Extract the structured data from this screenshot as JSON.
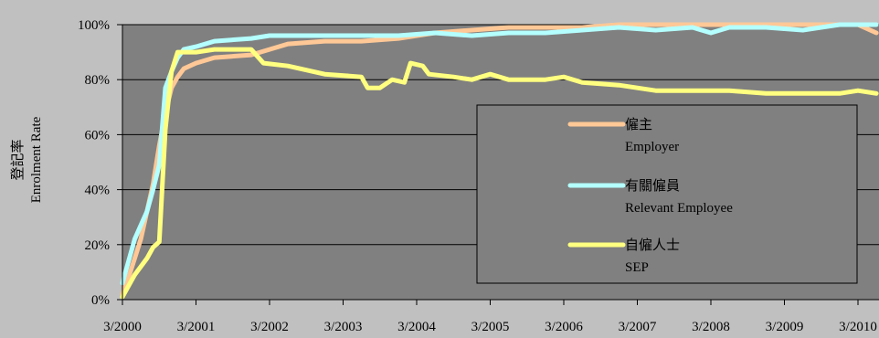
{
  "chart_data": {
    "type": "line",
    "ylabel_line1": "登記率",
    "ylabel_line2": "Enrolment Rate",
    "ylim": [
      0,
      100
    ],
    "y_ticks": [
      {
        "value": 0,
        "label": "0%"
      },
      {
        "value": 20,
        "label": "20%"
      },
      {
        "value": 40,
        "label": "40%"
      },
      {
        "value": 60,
        "label": "60%"
      },
      {
        "value": 80,
        "label": "80%"
      },
      {
        "value": 100,
        "label": "100%"
      }
    ],
    "x_ticks": [
      "3/2000",
      "3/2001",
      "3/2002",
      "3/2003",
      "3/2004",
      "3/2005",
      "3/2006",
      "3/2007",
      "3/2008",
      "3/2009",
      "3/2010"
    ],
    "grid": true,
    "legend_position": "right",
    "series": [
      {
        "name_zh": "僱主",
        "name_en": "Employer",
        "color": "#ffc896",
        "points": [
          {
            "x": "3/2000",
            "y": 2
          },
          {
            "x": "4/2000",
            "y": 8
          },
          {
            "x": "5/2000",
            "y": 15
          },
          {
            "x": "6/2000",
            "y": 22
          },
          {
            "x": "7/2000",
            "y": 32
          },
          {
            "x": "8/2000",
            "y": 42
          },
          {
            "x": "9/2000",
            "y": 56
          },
          {
            "x": "10/2000",
            "y": 68
          },
          {
            "x": "11/2000",
            "y": 77
          },
          {
            "x": "12/2000",
            "y": 81
          },
          {
            "x": "1/2001",
            "y": 84
          },
          {
            "x": "3/2001",
            "y": 86
          },
          {
            "x": "6/2001",
            "y": 88
          },
          {
            "x": "12/2001",
            "y": 89
          },
          {
            "x": "3/2002",
            "y": 91
          },
          {
            "x": "6/2002",
            "y": 93
          },
          {
            "x": "12/2002",
            "y": 94
          },
          {
            "x": "6/2003",
            "y": 94
          },
          {
            "x": "12/2003",
            "y": 95
          },
          {
            "x": "6/2004",
            "y": 97
          },
          {
            "x": "12/2004",
            "y": 98
          },
          {
            "x": "6/2005",
            "y": 99
          },
          {
            "x": "12/2005",
            "y": 99
          },
          {
            "x": "6/2006",
            "y": 99
          },
          {
            "x": "12/2006",
            "y": 100
          },
          {
            "x": "6/2007",
            "y": 100
          },
          {
            "x": "12/2007",
            "y": 100
          },
          {
            "x": "6/2008",
            "y": 100
          },
          {
            "x": "12/2008",
            "y": 100
          },
          {
            "x": "6/2009",
            "y": 100
          },
          {
            "x": "12/2009",
            "y": 100
          },
          {
            "x": "3/2010",
            "y": 100
          },
          {
            "x": "6/2010",
            "y": 97
          }
        ]
      },
      {
        "name_zh": "有關僱員",
        "name_en": "Relevant Employee",
        "color": "#b4ffff",
        "points": [
          {
            "x": "3/2000",
            "y": 6
          },
          {
            "x": "4/2000",
            "y": 14
          },
          {
            "x": "5/2000",
            "y": 22
          },
          {
            "x": "6/2000",
            "y": 27
          },
          {
            "x": "7/2000",
            "y": 32
          },
          {
            "x": "8/2000",
            "y": 40
          },
          {
            "x": "9/2000",
            "y": 49
          },
          {
            "x": "10/2000",
            "y": 77
          },
          {
            "x": "11/2000",
            "y": 83
          },
          {
            "x": "12/2000",
            "y": 88
          },
          {
            "x": "1/2001",
            "y": 91
          },
          {
            "x": "3/2001",
            "y": 92
          },
          {
            "x": "6/2001",
            "y": 94
          },
          {
            "x": "12/2001",
            "y": 95
          },
          {
            "x": "3/2002",
            "y": 96
          },
          {
            "x": "12/2002",
            "y": 96
          },
          {
            "x": "6/2003",
            "y": 96
          },
          {
            "x": "12/2003",
            "y": 96
          },
          {
            "x": "6/2004",
            "y": 97
          },
          {
            "x": "12/2004",
            "y": 96
          },
          {
            "x": "6/2005",
            "y": 97
          },
          {
            "x": "12/2005",
            "y": 97
          },
          {
            "x": "6/2006",
            "y": 98
          },
          {
            "x": "12/2006",
            "y": 99
          },
          {
            "x": "6/2007",
            "y": 98
          },
          {
            "x": "12/2007",
            "y": 99
          },
          {
            "x": "3/2008",
            "y": 97
          },
          {
            "x": "6/2008",
            "y": 99
          },
          {
            "x": "12/2008",
            "y": 99
          },
          {
            "x": "6/2009",
            "y": 98
          },
          {
            "x": "12/2009",
            "y": 100
          },
          {
            "x": "6/2010",
            "y": 100
          }
        ]
      },
      {
        "name_zh": "自僱人士",
        "name_en": "SEP",
        "color": "#ffff80",
        "points": [
          {
            "x": "3/2000",
            "y": 1
          },
          {
            "x": "4/2000",
            "y": 5
          },
          {
            "x": "5/2000",
            "y": 9
          },
          {
            "x": "6/2000",
            "y": 12
          },
          {
            "x": "7/2000",
            "y": 15
          },
          {
            "x": "8/2000",
            "y": 19
          },
          {
            "x": "9/2000",
            "y": 21
          },
          {
            "x": "10/2000",
            "y": 62
          },
          {
            "x": "11/2000",
            "y": 83
          },
          {
            "x": "12/2000",
            "y": 90
          },
          {
            "x": "3/2001",
            "y": 90
          },
          {
            "x": "6/2001",
            "y": 91
          },
          {
            "x": "12/2001",
            "y": 91
          },
          {
            "x": "2/2002",
            "y": 86
          },
          {
            "x": "6/2002",
            "y": 85
          },
          {
            "x": "12/2002",
            "y": 82
          },
          {
            "x": "6/2003",
            "y": 81
          },
          {
            "x": "7/2003",
            "y": 77
          },
          {
            "x": "9/2003",
            "y": 77
          },
          {
            "x": "11/2003",
            "y": 80
          },
          {
            "x": "1/2004",
            "y": 79
          },
          {
            "x": "2/2004",
            "y": 86
          },
          {
            "x": "4/2004",
            "y": 85
          },
          {
            "x": "5/2004",
            "y": 82
          },
          {
            "x": "9/2004",
            "y": 81
          },
          {
            "x": "12/2004",
            "y": 80
          },
          {
            "x": "3/2005",
            "y": 82
          },
          {
            "x": "6/2005",
            "y": 80
          },
          {
            "x": "12/2005",
            "y": 80
          },
          {
            "x": "3/2006",
            "y": 81
          },
          {
            "x": "6/2006",
            "y": 79
          },
          {
            "x": "12/2006",
            "y": 78
          },
          {
            "x": "6/2007",
            "y": 76
          },
          {
            "x": "12/2007",
            "y": 76
          },
          {
            "x": "6/2008",
            "y": 76
          },
          {
            "x": "12/2008",
            "y": 75
          },
          {
            "x": "6/2009",
            "y": 75
          },
          {
            "x": "12/2009",
            "y": 75
          },
          {
            "x": "3/2010",
            "y": 76
          },
          {
            "x": "6/2010",
            "y": 75
          }
        ]
      }
    ]
  }
}
